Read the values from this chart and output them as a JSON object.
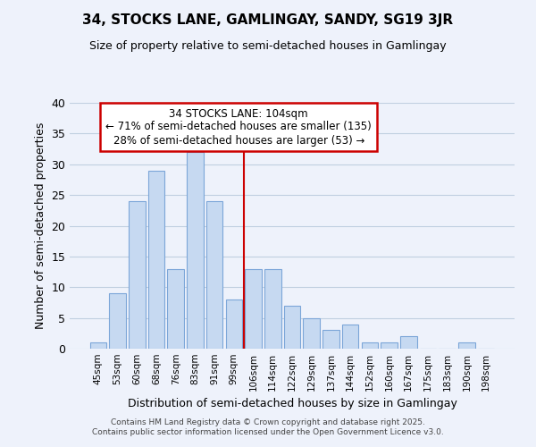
{
  "title": "34, STOCKS LANE, GAMLINGAY, SANDY, SG19 3JR",
  "subtitle": "Size of property relative to semi-detached houses in Gamlingay",
  "xlabel": "Distribution of semi-detached houses by size in Gamlingay",
  "ylabel": "Number of semi-detached properties",
  "bin_labels": [
    "45sqm",
    "53sqm",
    "60sqm",
    "68sqm",
    "76sqm",
    "83sqm",
    "91sqm",
    "99sqm",
    "106sqm",
    "114sqm",
    "122sqm",
    "129sqm",
    "137sqm",
    "144sqm",
    "152sqm",
    "160sqm",
    "167sqm",
    "175sqm",
    "183sqm",
    "190sqm",
    "198sqm"
  ],
  "bar_values": [
    1,
    9,
    24,
    29,
    13,
    32,
    24,
    8,
    13,
    13,
    7,
    5,
    3,
    4,
    1,
    1,
    2,
    0,
    0,
    1,
    0
  ],
  "bar_color": "#c6d9f1",
  "bar_edge_color": "#7ca6d8",
  "grid_color": "#c0cfe0",
  "background_color": "#eef2fb",
  "vline_x_index": 8,
  "vline_color": "#cc0000",
  "annotation_title": "34 STOCKS LANE: 104sqm",
  "annotation_line1": "← 71% of semi-detached houses are smaller (135)",
  "annotation_line2": "28% of semi-detached houses are larger (53) →",
  "annotation_box_color": "#ffffff",
  "annotation_box_edge": "#cc0000",
  "ylim": [
    0,
    40
  ],
  "yticks": [
    0,
    5,
    10,
    15,
    20,
    25,
    30,
    35,
    40
  ],
  "footer_line1": "Contains HM Land Registry data © Crown copyright and database right 2025.",
  "footer_line2": "Contains public sector information licensed under the Open Government Licence v3.0."
}
